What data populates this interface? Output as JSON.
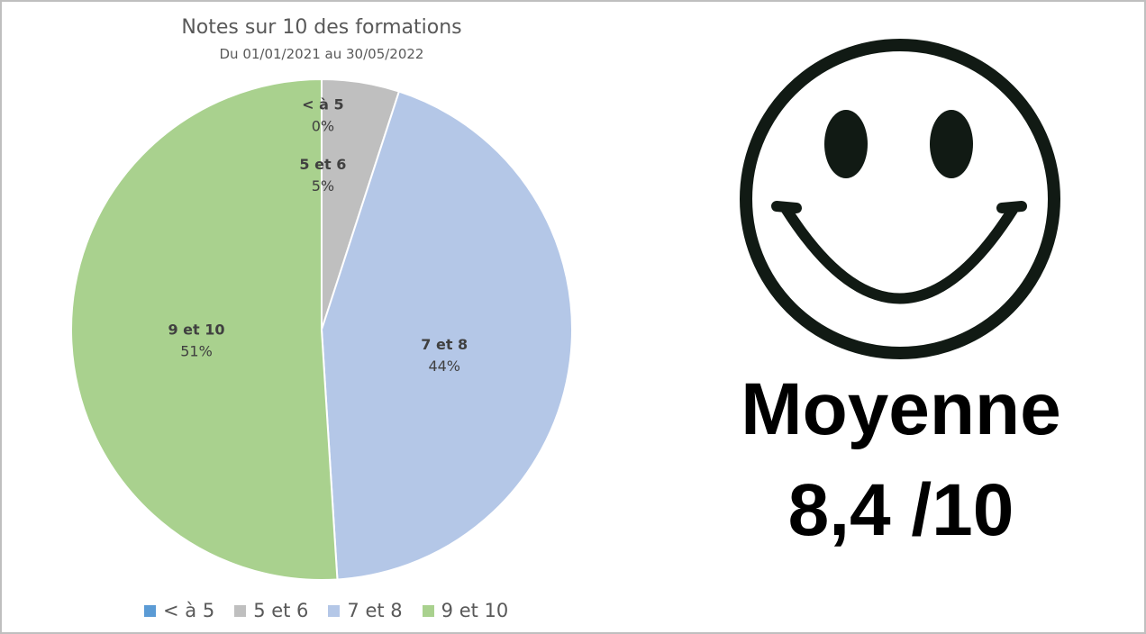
{
  "chart_data": {
    "type": "pie",
    "title": "Notes sur 10 des formations",
    "subtitle": "Du 01/01/2021 au 30/05/2022",
    "categories": [
      "< à 5",
      "5 et 6",
      "7 et 8",
      "9 et 10"
    ],
    "values": [
      0,
      5,
      44,
      51
    ],
    "labels": [
      "0%",
      "5%",
      "44%",
      "51%"
    ],
    "colors": [
      "#5b9bd5",
      "#bfbfbf",
      "#b4c7e7",
      "#a9d18e"
    ],
    "legend_position": "bottom"
  },
  "summary": {
    "label": "Moyenne",
    "value": "8,4 /10"
  },
  "icon": "smiley-face-icon"
}
